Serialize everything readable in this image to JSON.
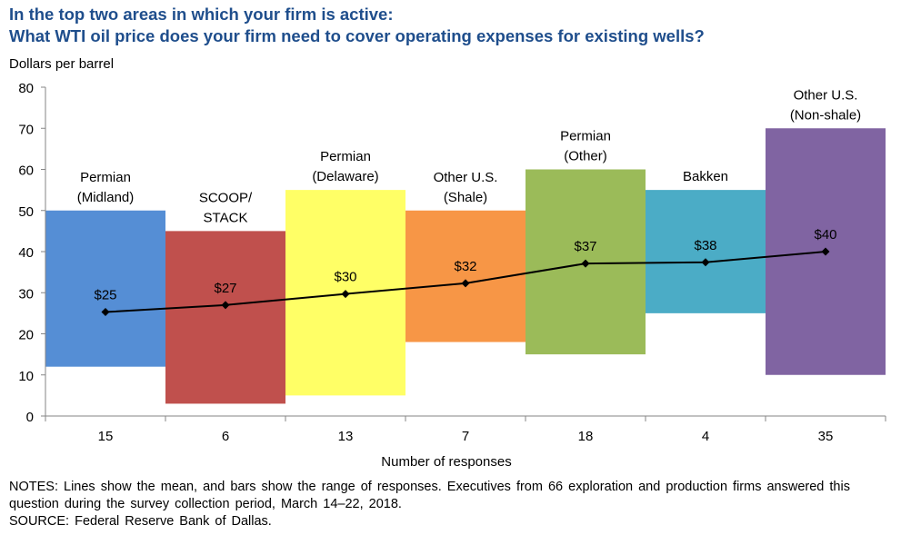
{
  "title_line1": "In the top two areas in which your firm is active:",
  "title_line2": "What WTI oil price does your firm need to cover operating expenses for existing wells?",
  "notes_line1": "NOTES: Lines show the mean, and bars show the range of responses. Executives from 66 exploration and production firms answered this question during the survey collection period, March 14–22, 2018.",
  "source": "SOURCE: Federal Reserve Bank of Dallas.",
  "chart_data": {
    "type": "bar",
    "subtype": "floating range bars with mean line",
    "ylabel": "Dollars per barrel",
    "xlabel": "Number of responses",
    "ylim": [
      0,
      80
    ],
    "yticks": [
      0,
      10,
      20,
      30,
      40,
      50,
      60,
      70,
      80
    ],
    "grid": false,
    "categories": [
      {
        "name_lines": [
          "Permian",
          "(Midland)"
        ],
        "responses": "15",
        "low": 12,
        "high": 50,
        "mean": 25.3,
        "mean_label": "$25",
        "color": "#558ED5"
      },
      {
        "name_lines": [
          "SCOOP/",
          "STACK"
        ],
        "responses": "6",
        "low": 3,
        "high": 45,
        "mean": 27,
        "mean_label": "$27",
        "color": "#C0504D"
      },
      {
        "name_lines": [
          "Permian",
          "(Delaware)"
        ],
        "responses": "13",
        "low": 5,
        "high": 55,
        "mean": 29.7,
        "mean_label": "$30",
        "color": "#FFFF66"
      },
      {
        "name_lines": [
          "Other U.S.",
          "(Shale)"
        ],
        "responses": "7",
        "low": 18,
        "high": 50,
        "mean": 32.3,
        "mean_label": "$32",
        "color": "#F79646"
      },
      {
        "name_lines": [
          "Permian",
          "(Other)"
        ],
        "responses": "18",
        "low": 15,
        "high": 60,
        "mean": 37.1,
        "mean_label": "$37",
        "color": "#9BBB59"
      },
      {
        "name_lines": [
          "Bakken"
        ],
        "responses": "4",
        "low": 25,
        "high": 55,
        "mean": 37.4,
        "mean_label": "$38",
        "color": "#4BACC6"
      },
      {
        "name_lines": [
          "Other U.S.",
          "(Non-shale)"
        ],
        "responses": "35",
        "low": 10,
        "high": 70,
        "mean": 40,
        "mean_label": "$40",
        "color": "#8064A2"
      }
    ]
  }
}
